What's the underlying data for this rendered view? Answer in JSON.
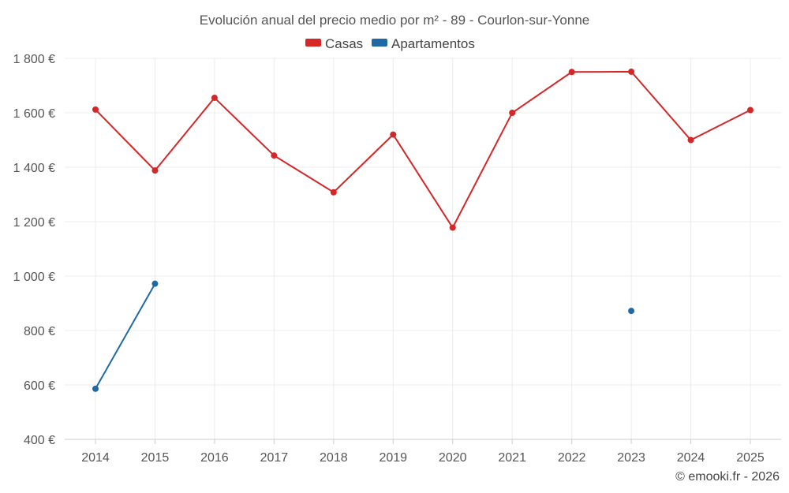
{
  "chart_data": {
    "type": "line",
    "title": "Evolución anual del precio medio por m² - 89 - Courlon-sur-Yonne",
    "xlabel": "",
    "ylabel": "",
    "x": [
      "2014",
      "2015",
      "2016",
      "2017",
      "2018",
      "2019",
      "2020",
      "2021",
      "2022",
      "2023",
      "2024",
      "2025"
    ],
    "y_ticks": [
      "1 800 €",
      "1 600 €",
      "1 400 €",
      "1 200 €",
      "1 000 €",
      "800 €",
      "600 €",
      "400 €"
    ],
    "y_tick_values": [
      1800,
      1600,
      1400,
      1200,
      1000,
      800,
      600,
      400
    ],
    "ylim": [
      400,
      1800
    ],
    "grid": true,
    "legend_position": "top-center",
    "series": [
      {
        "name": "Casas",
        "color": "#d62728",
        "values": [
          1612,
          1388,
          1655,
          1443,
          1308,
          1520,
          1178,
          1600,
          1750,
          1751,
          1500,
          1610
        ]
      },
      {
        "name": "Apartamentos",
        "color": "#1f6aa5",
        "values": [
          586,
          972,
          null,
          null,
          null,
          null,
          null,
          null,
          null,
          872,
          null,
          null
        ]
      }
    ]
  },
  "credit": "© emooki.fr - 2026"
}
